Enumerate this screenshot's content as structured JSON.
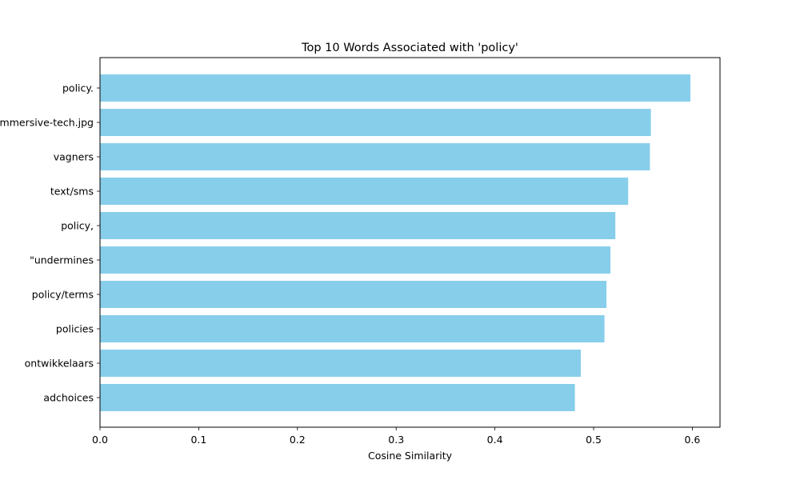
{
  "chart_data": {
    "type": "bar",
    "orientation": "horizontal",
    "title": "Top 10 Words Associated with 'policy'",
    "xlabel": "Cosine Similarity",
    "ylabel": "",
    "xlim": [
      0.0,
      0.628
    ],
    "xticks": [
      0.0,
      0.1,
      0.2,
      0.3,
      0.4,
      0.5,
      0.6
    ],
    "xtick_labels": [
      "0.0",
      "0.1",
      "0.2",
      "0.3",
      "0.4",
      "0.5",
      "0.6"
    ],
    "categories": [
      "policy.",
      "immersive-tech.jpg",
      "vagners",
      "text/sms",
      "policy,",
      "\"undermines",
      "policy/terms",
      "policies",
      "ontwikkelaars",
      "adchoices"
    ],
    "values": [
      0.598,
      0.558,
      0.557,
      0.535,
      0.522,
      0.517,
      0.513,
      0.511,
      0.487,
      0.481
    ],
    "bar_color": "#87ceeb",
    "grid": false,
    "legend": "none"
  }
}
